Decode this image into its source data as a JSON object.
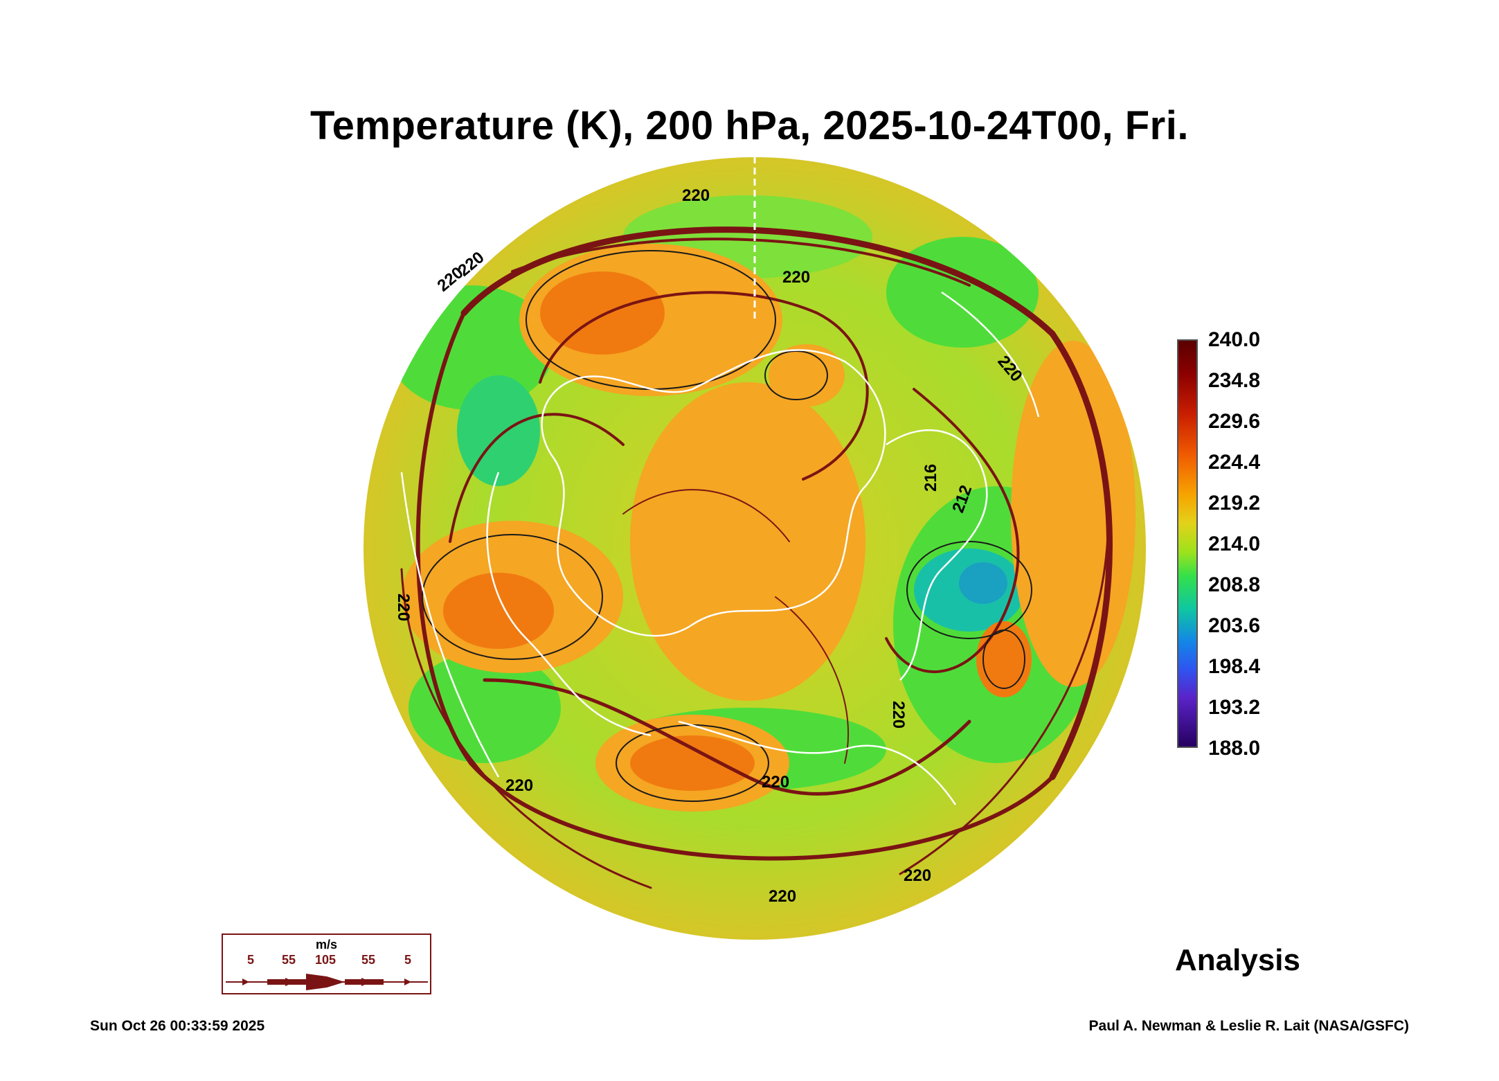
{
  "title": "Temperature (K), 200 hPa, 2025-10-24T00, Fri.",
  "colorbar": {
    "labels": [
      "240.0",
      "234.8",
      "229.6",
      "224.4",
      "219.2",
      "214.0",
      "208.8",
      "203.6",
      "198.4",
      "193.2",
      "188.0"
    ]
  },
  "contour_labels": [
    "220",
    "220",
    "220",
    "220",
    "220",
    "220",
    "220",
    "220",
    "220",
    "220",
    "216",
    "212",
    "220"
  ],
  "wind_legend": {
    "units": "m/s",
    "speeds": [
      "5",
      "55",
      "105",
      "55",
      "5"
    ]
  },
  "analysis_label": "Analysis",
  "timestamp": "Sun Oct 26 00:33:59 2025",
  "credit": "Paul A. Newman & Leslie R. Lait (NASA/GSFC)",
  "colors": {
    "warm": "#f07a10",
    "orange": "#f5a623",
    "yellow": "#cfd62a",
    "green": "#4fdc3a",
    "cyan": "#19c0a8",
    "streamline": "#7a1414",
    "coast": "#ffffff"
  }
}
